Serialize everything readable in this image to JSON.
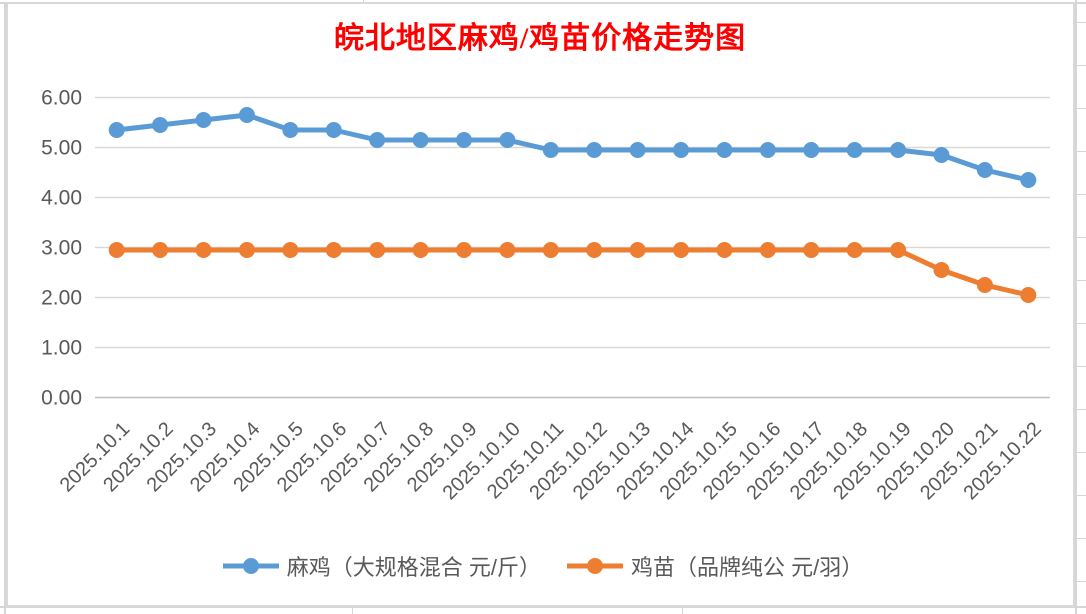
{
  "chart_data": {
    "type": "line",
    "title": "皖北地区麻鸡/鸡苗价格走势图",
    "title_color": "#FF0000",
    "categories": [
      "2025.10.1",
      "2025.10.2",
      "2025.10.3",
      "2025.10.4",
      "2025.10.5",
      "2025.10.6",
      "2025.10.7",
      "2025.10.8",
      "2025.10.9",
      "2025.10.10",
      "2025.10.11",
      "2025.10.12",
      "2025.10.13",
      "2025.10.14",
      "2025.10.15",
      "2025.10.16",
      "2025.10.17",
      "2025.10.18",
      "2025.10.19",
      "2025.10.20",
      "2025.10.21",
      "2025.10.22"
    ],
    "series": [
      {
        "name": "麻鸡（大规格混合 元/斤）",
        "color": "#5B9BD5",
        "values": [
          5.35,
          5.45,
          5.55,
          5.65,
          5.35,
          5.35,
          5.15,
          5.15,
          5.15,
          5.15,
          4.95,
          4.95,
          4.95,
          4.95,
          4.95,
          4.95,
          4.95,
          4.95,
          4.95,
          4.85,
          4.55,
          4.35
        ]
      },
      {
        "name": "鸡苗（品牌纯公 元/羽）",
        "color": "#ED7D31",
        "values": [
          2.95,
          2.95,
          2.95,
          2.95,
          2.95,
          2.95,
          2.95,
          2.95,
          2.95,
          2.95,
          2.95,
          2.95,
          2.95,
          2.95,
          2.95,
          2.95,
          2.95,
          2.95,
          2.95,
          2.55,
          2.25,
          2.05
        ]
      }
    ],
    "y_ticks": [
      "6.00",
      "5.00",
      "4.00",
      "3.00",
      "2.00",
      "1.00",
      "0.00"
    ],
    "ylim": [
      0,
      6
    ],
    "grid": true,
    "legend_position": "bottom",
    "axis_label_color": "#595959",
    "gridline_color": "#D9D9D9"
  }
}
